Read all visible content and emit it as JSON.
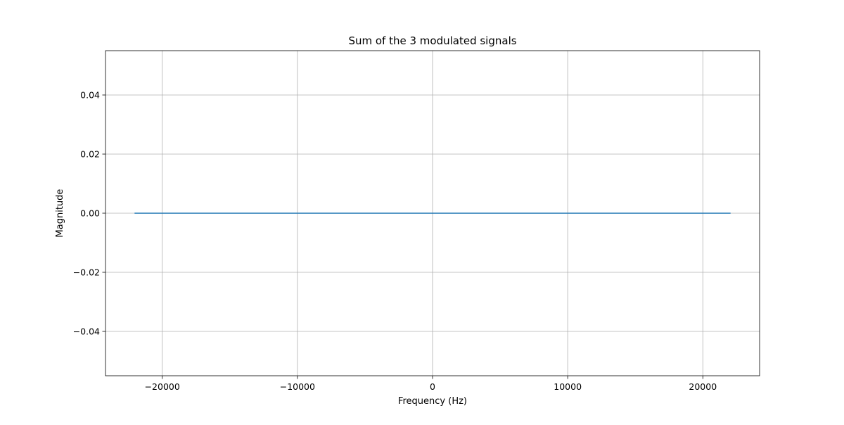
{
  "chart_data": {
    "type": "line",
    "title": "Sum of the 3 modulated signals",
    "xlabel": "Frequency (Hz)",
    "ylabel": "Magnitude",
    "xlim": [
      -24200,
      24200
    ],
    "ylim": [
      -0.055,
      0.055
    ],
    "xticks": [
      -20000,
      -10000,
      0,
      10000,
      20000
    ],
    "xtick_labels": [
      "−20000",
      "−10000",
      "0",
      "10000",
      "20000"
    ],
    "yticks": [
      -0.04,
      -0.02,
      0.0,
      0.02,
      0.04
    ],
    "ytick_labels": [
      "−0.04",
      "−0.02",
      "0.00",
      "0.02",
      "0.04"
    ],
    "grid": true,
    "series": [
      {
        "color": "#1f77b4",
        "x": [
          -22050,
          22050
        ],
        "y": [
          0.0,
          0.0
        ]
      }
    ]
  }
}
